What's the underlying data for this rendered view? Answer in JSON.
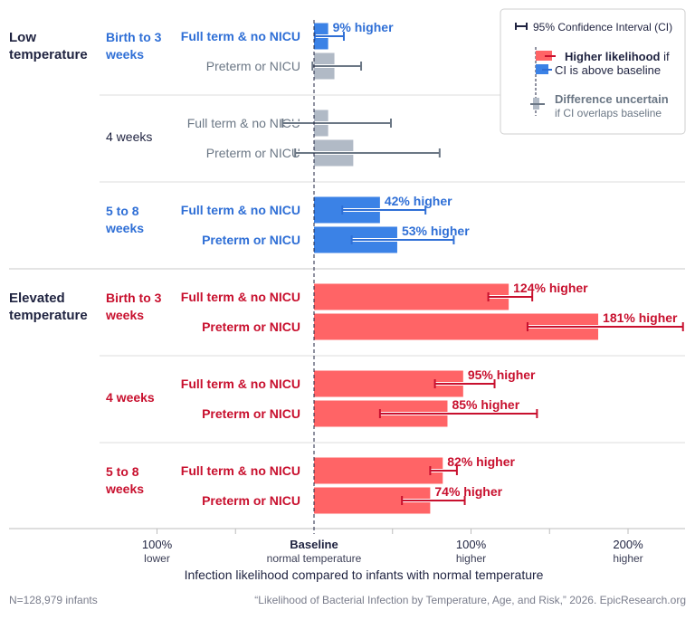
{
  "chart_data": {
    "type": "bar",
    "orientation": "horizontal",
    "xlabel": "Infection likelihood compared to infants with normal temperature",
    "xlim": [
      -100,
      235
    ],
    "x_ticks": [
      {
        "value": -100,
        "label": "100%",
        "sublabel": "lower"
      },
      {
        "value": 0,
        "label": "Baseline",
        "sublabel": "normal temperature"
      },
      {
        "value": 100,
        "label": "100%",
        "sublabel": "higher"
      },
      {
        "value": 200,
        "label": "200%",
        "sublabel": "higher"
      }
    ],
    "minor_ticks": [
      -50,
      50,
      150
    ],
    "colors": {
      "higher_low": "#3b82e6",
      "higher_low_text": "#2f6fd6",
      "higher_elevated": "#ff6466",
      "higher_elevated_text": "#c8102e",
      "uncertain": "#b1bac6",
      "uncertain_text": "#6b7785",
      "dark": "#1f2340"
    },
    "groups": [
      {
        "temperature": "Low temperature",
        "age": "Birth to 3 weeks",
        "status": "low",
        "rows": [
          {
            "label": "Full term & no NICU",
            "value": 9,
            "ci": [
              0.5,
              19
            ],
            "significant": true,
            "value_label": "9% higher"
          },
          {
            "label": "Preterm or NICU",
            "value": 13,
            "ci": [
              -1,
              30
            ],
            "significant": false
          }
        ]
      },
      {
        "temperature": "",
        "age": "4 weeks",
        "status": "low",
        "rows": [
          {
            "label": "Full term & no NICU",
            "value": 9,
            "ci": [
              -20,
              49
            ],
            "significant": false
          },
          {
            "label": "Preterm or NICU",
            "value": 25,
            "ci": [
              -12,
              80
            ],
            "significant": false
          }
        ]
      },
      {
        "temperature": "",
        "age": "5 to 8 weeks",
        "status": "low",
        "rows": [
          {
            "label": "Full term & no NICU",
            "value": 42,
            "ci": [
              18,
              71
            ],
            "significant": true,
            "value_label": "42% higher"
          },
          {
            "label": "Preterm or NICU",
            "value": 53,
            "ci": [
              24,
              89
            ],
            "significant": true,
            "value_label": "53% higher"
          }
        ]
      },
      {
        "temperature": "Elevated temperature",
        "age": "Birth to 3 weeks",
        "status": "elevated",
        "rows": [
          {
            "label": "Full term & no NICU",
            "value": 124,
            "ci": [
              111,
              139
            ],
            "significant": true,
            "value_label": "124% higher"
          },
          {
            "label": "Preterm or NICU",
            "value": 181,
            "ci": [
              136,
              235
            ],
            "significant": true,
            "value_label": "181% higher"
          }
        ]
      },
      {
        "temperature": "",
        "age": "4 weeks",
        "status": "elevated",
        "rows": [
          {
            "label": "Full term & no NICU",
            "value": 95,
            "ci": [
              77,
              115
            ],
            "significant": true,
            "value_label": "95% higher"
          },
          {
            "label": "Preterm or NICU",
            "value": 85,
            "ci": [
              42,
              142
            ],
            "significant": true,
            "value_label": "85% higher"
          }
        ]
      },
      {
        "temperature": "",
        "age": "5 to 8 weeks",
        "status": "elevated",
        "rows": [
          {
            "label": "Full term & no NICU",
            "value": 82,
            "ci": [
              74,
              91
            ],
            "significant": true,
            "value_label": "82% higher"
          },
          {
            "label": "Preterm or NICU",
            "value": 74,
            "ci": [
              56,
              96
            ],
            "significant": true,
            "value_label": "74% higher"
          }
        ]
      }
    ],
    "legend": {
      "placement": "top-right",
      "ci": "95% Confidence Interval (CI)",
      "higher_bold": "Higher likelihood",
      "higher_rest": " if",
      "higher_line2": "CI is above baseline",
      "uncertain_line1": "Difference uncertain",
      "uncertain_line2": "if CI overlaps baseline"
    }
  },
  "footer": {
    "n": "N=128,979 infants",
    "source": "“Likelihood of Bacterial Infection by Temperature, Age, and Risk,” 2026. EpicResearch.org"
  }
}
